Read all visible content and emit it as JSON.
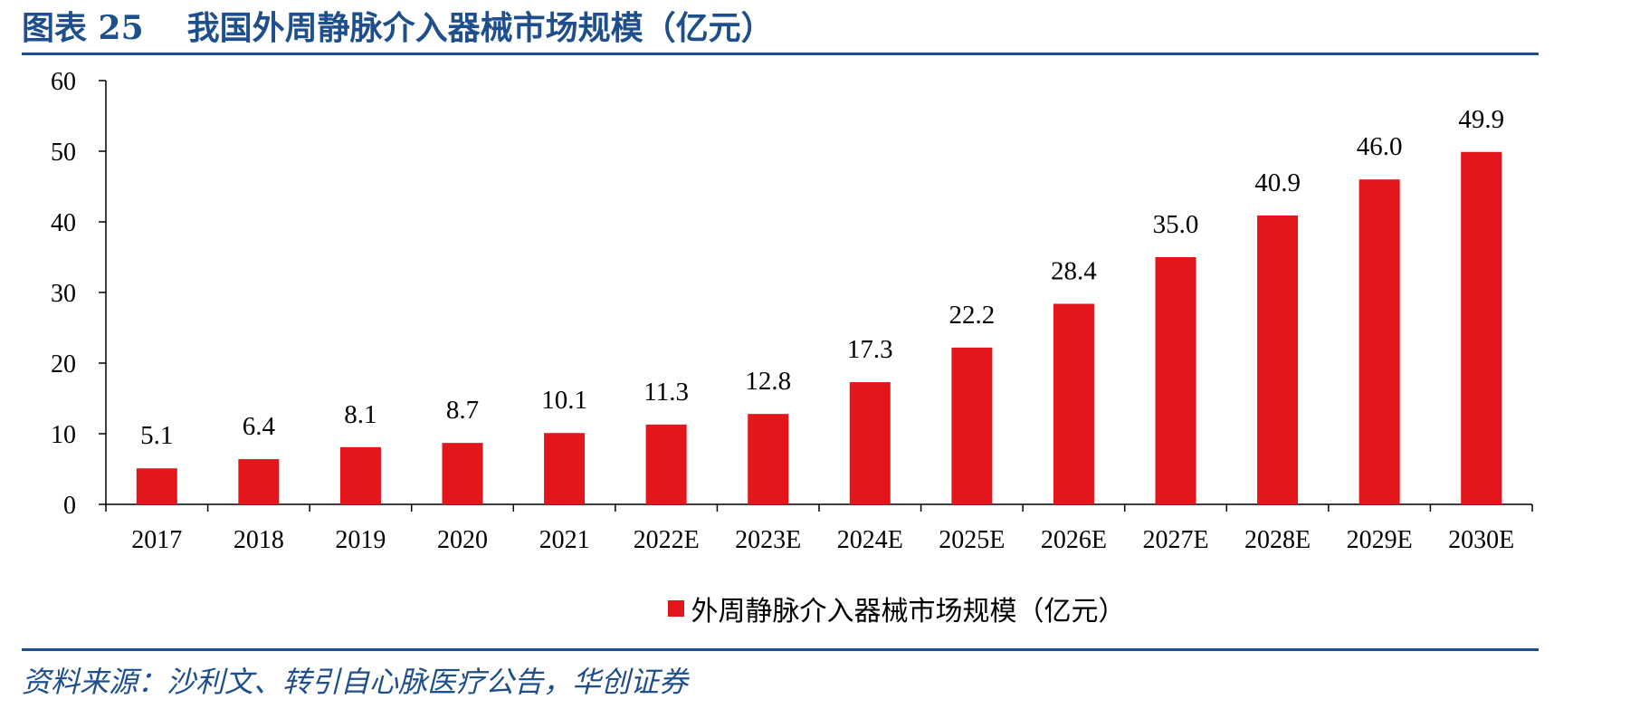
{
  "figure": {
    "label": "图表 25",
    "title": "我国外周静脉介入器械市场规模（亿元）",
    "source": "资料来源：沙利文、转引自心脉医疗公告，华创证券"
  },
  "colors": {
    "accent": "#1f4e8c",
    "bar": "#e3161c"
  },
  "chart_data": {
    "type": "bar",
    "categories": [
      "2017",
      "2018",
      "2019",
      "2020",
      "2021",
      "2022E",
      "2023E",
      "2024E",
      "2025E",
      "2026E",
      "2027E",
      "2028E",
      "2029E",
      "2030E"
    ],
    "series": [
      {
        "name": "外周静脉介入器械市场规模（亿元）",
        "values": [
          5.1,
          6.4,
          8.1,
          8.7,
          10.1,
          11.3,
          12.8,
          17.3,
          22.2,
          28.4,
          35.0,
          40.9,
          46.0,
          49.9
        ],
        "labels": [
          "5.1",
          "6.4",
          "8.1",
          "8.7",
          "10.1",
          "11.3",
          "12.8",
          "17.3",
          "22.2",
          "28.4",
          "35.0",
          "40.9",
          "46.0",
          "49.9"
        ]
      }
    ],
    "ylim": [
      0,
      60
    ],
    "yticks": [
      0,
      10,
      20,
      30,
      40,
      50,
      60
    ],
    "grid": false,
    "legend_position": "bottom-center"
  }
}
